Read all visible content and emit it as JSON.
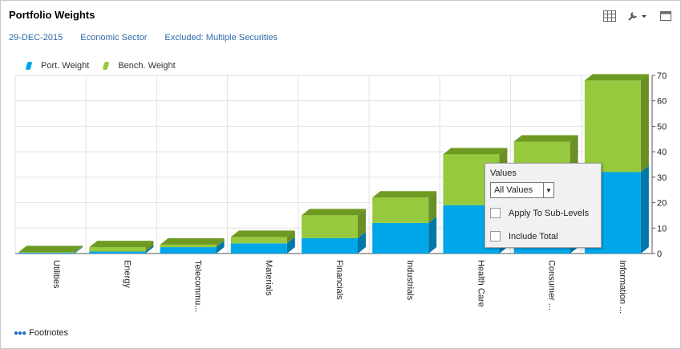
{
  "header": {
    "title": "Portfolio Weights"
  },
  "info": {
    "date": "29-DEC-2015",
    "grouping": "Economic Sector",
    "excluded": "Excluded: Multiple Securities"
  },
  "toolbar": {
    "icons": [
      "grid-icon",
      "wrench-icon",
      "dropdown-caret-icon",
      "maximize-icon"
    ]
  },
  "popup": {
    "title": "Values",
    "select_value": "All Values",
    "apply_label": "Apply To Sub-Levels",
    "include_total_label": "Include Total"
  },
  "footer": {
    "footnotes_label": "Footnotes"
  },
  "colors": {
    "port": "#00a6e8",
    "bench": "#96c93d",
    "bench_top": "#6e9a22",
    "port_side": "#0078a8",
    "bench_side": "#6a8f25"
  },
  "chart_data": {
    "type": "bar",
    "stacked": true,
    "categories": [
      "Utilities",
      "Energy",
      "Telecommu...",
      "Materials",
      "Financials",
      "Industrials",
      "Health Care",
      "Consumer ...",
      "Information ..."
    ],
    "series": [
      {
        "name": "Port. Weight",
        "values": [
          0.3,
          0.8,
          2.5,
          4.0,
          6.0,
          12.0,
          19.0,
          25.0,
          32.0
        ]
      },
      {
        "name": "Bench. Weight",
        "values": [
          0.2,
          1.7,
          1.0,
          2.5,
          9.0,
          10.0,
          20.0,
          19.0,
          36.0
        ]
      }
    ],
    "ylim": [
      0,
      70
    ],
    "yticks": [
      0,
      10,
      20,
      30,
      40,
      50,
      60,
      70
    ],
    "grid": true,
    "legend": "top-left",
    "y_axis_side": "right"
  }
}
